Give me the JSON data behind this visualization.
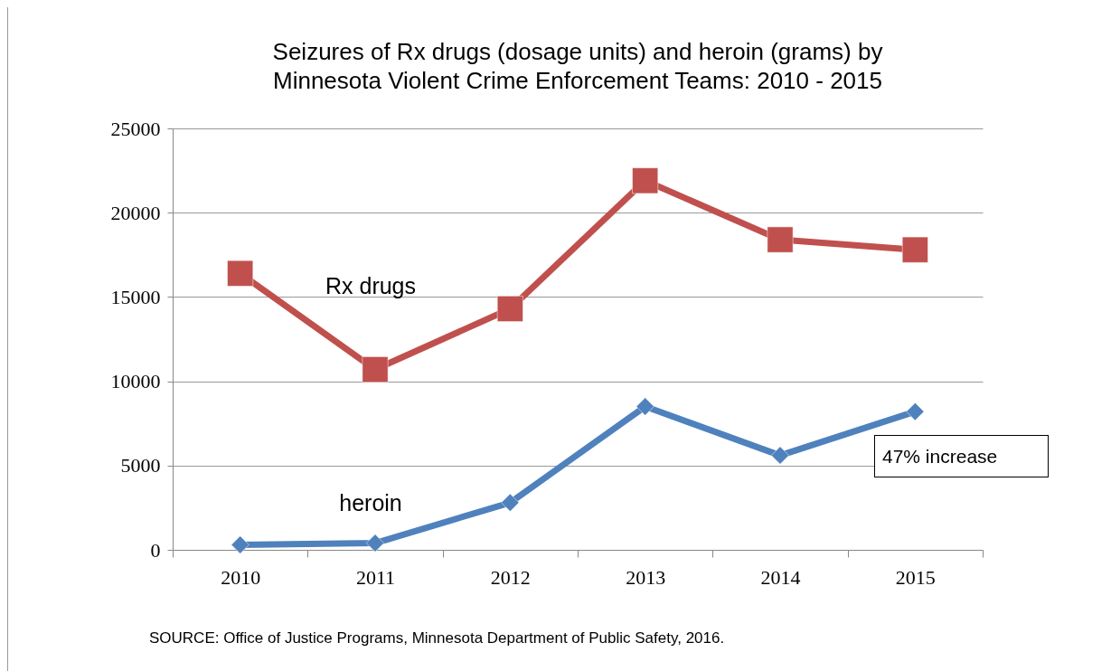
{
  "chart_data": {
    "type": "line",
    "title": "Seizures of Rx drugs (dosage units) and heroin (grams) by Minnesota Violent Crime Enforcement Teams: 2010 - 2015",
    "categories": [
      "2010",
      "2011",
      "2012",
      "2013",
      "2014",
      "2015"
    ],
    "series": [
      {
        "name": "Rx drugs",
        "color": "#c0504d",
        "marker": "square",
        "values": [
          16400,
          10700,
          14300,
          21900,
          18400,
          17800
        ]
      },
      {
        "name": "heroin",
        "color": "#4f81bd",
        "marker": "diamond",
        "values": [
          300,
          400,
          2800,
          8500,
          5600,
          8200
        ]
      }
    ],
    "ylim": [
      0,
      25000
    ],
    "yticks": [
      0,
      5000,
      10000,
      15000,
      20000,
      25000
    ],
    "grid": "y",
    "legend": false,
    "annotations": [
      "47% increase",
      "SOURCE:  Office of Justice Programs, Minnesota Department of Public Safety, 2016."
    ]
  }
}
